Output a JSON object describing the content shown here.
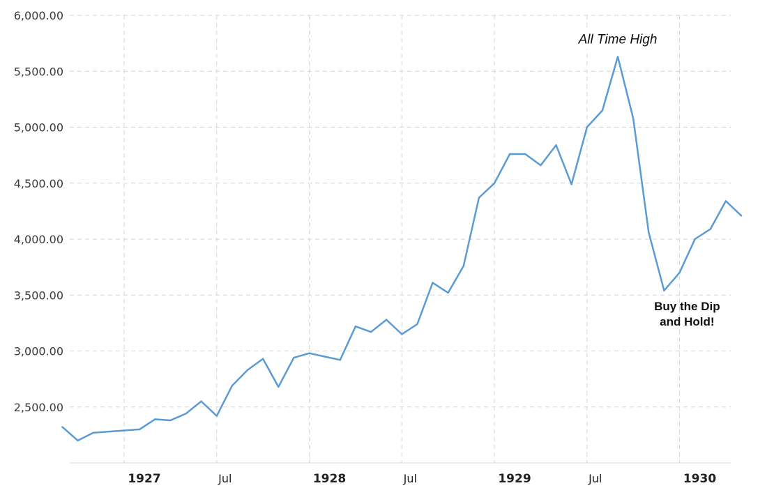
{
  "chart_data": {
    "type": "line",
    "ylim": [
      2000,
      6000
    ],
    "xlim": [
      "1926-09",
      "1930-03"
    ],
    "grid": true,
    "y_tick_labels": [
      "2,500.00",
      "3,000.00",
      "3,500.00",
      "4,000.00",
      "4,500.00",
      "5,000.00",
      "5,500.00",
      "6,000.00"
    ],
    "y_ticks": [
      2500,
      3000,
      3500,
      4000,
      4500,
      5000,
      5500,
      6000
    ],
    "x_ticks": [
      {
        "label": "1927",
        "date": "1927-01",
        "major": true
      },
      {
        "label": "Jul",
        "date": "1927-07",
        "major": false
      },
      {
        "label": "1928",
        "date": "1928-01",
        "major": true
      },
      {
        "label": "Jul",
        "date": "1928-07",
        "major": false
      },
      {
        "label": "1929",
        "date": "1929-01",
        "major": true
      },
      {
        "label": "Jul",
        "date": "1929-07",
        "major": false
      },
      {
        "label": "1930",
        "date": "1930-01",
        "major": true
      }
    ],
    "series": [
      {
        "color": "#5b9bd5",
        "points": [
          [
            "1926-09",
            2320
          ],
          [
            "1926-10",
            2200
          ],
          [
            "1926-11",
            2270
          ],
          [
            "1926-12",
            2280
          ],
          [
            "1927-01",
            2290
          ],
          [
            "1927-02",
            2300
          ],
          [
            "1927-03",
            2390
          ],
          [
            "1927-04",
            2380
          ],
          [
            "1927-05",
            2440
          ],
          [
            "1927-06",
            2550
          ],
          [
            "1927-07",
            2420
          ],
          [
            "1927-08",
            2690
          ],
          [
            "1927-09",
            2830
          ],
          [
            "1927-10",
            2930
          ],
          [
            "1927-11",
            2680
          ],
          [
            "1927-12",
            2940
          ],
          [
            "1928-01",
            2980
          ],
          [
            "1928-02",
            2950
          ],
          [
            "1928-03",
            2920
          ],
          [
            "1928-04",
            3220
          ],
          [
            "1928-05",
            3170
          ],
          [
            "1928-06",
            3280
          ],
          [
            "1928-07",
            3150
          ],
          [
            "1928-08",
            3240
          ],
          [
            "1928-09",
            3610
          ],
          [
            "1928-10",
            3520
          ],
          [
            "1928-11",
            3760
          ],
          [
            "1928-12",
            4370
          ],
          [
            "1929-01",
            4500
          ],
          [
            "1929-02",
            4760
          ],
          [
            "1929-03",
            4760
          ],
          [
            "1929-04",
            4660
          ],
          [
            "1929-05",
            4840
          ],
          [
            "1929-06",
            4490
          ],
          [
            "1929-07",
            5000
          ],
          [
            "1929-08",
            5150
          ],
          [
            "1929-09",
            5630
          ],
          [
            "1929-10",
            5080
          ],
          [
            "1929-11",
            4060
          ],
          [
            "1929-12",
            3540
          ],
          [
            "1930-01",
            3700
          ],
          [
            "1930-02",
            4000
          ],
          [
            "1930-03",
            4090
          ],
          [
            "1930-04",
            4340
          ],
          [
            "1930-05",
            4210
          ]
        ]
      }
    ],
    "annotations": [
      {
        "id": "ath",
        "lines": [
          "All Time High"
        ],
        "style": "italic",
        "anchor_date": "1929-09",
        "anchor_value": 5630
      },
      {
        "id": "dip",
        "lines": [
          "Buy the Dip",
          "and Hold!"
        ],
        "style": "bold",
        "anchor_date": "1929-12",
        "anchor_value": 3540
      }
    ]
  }
}
